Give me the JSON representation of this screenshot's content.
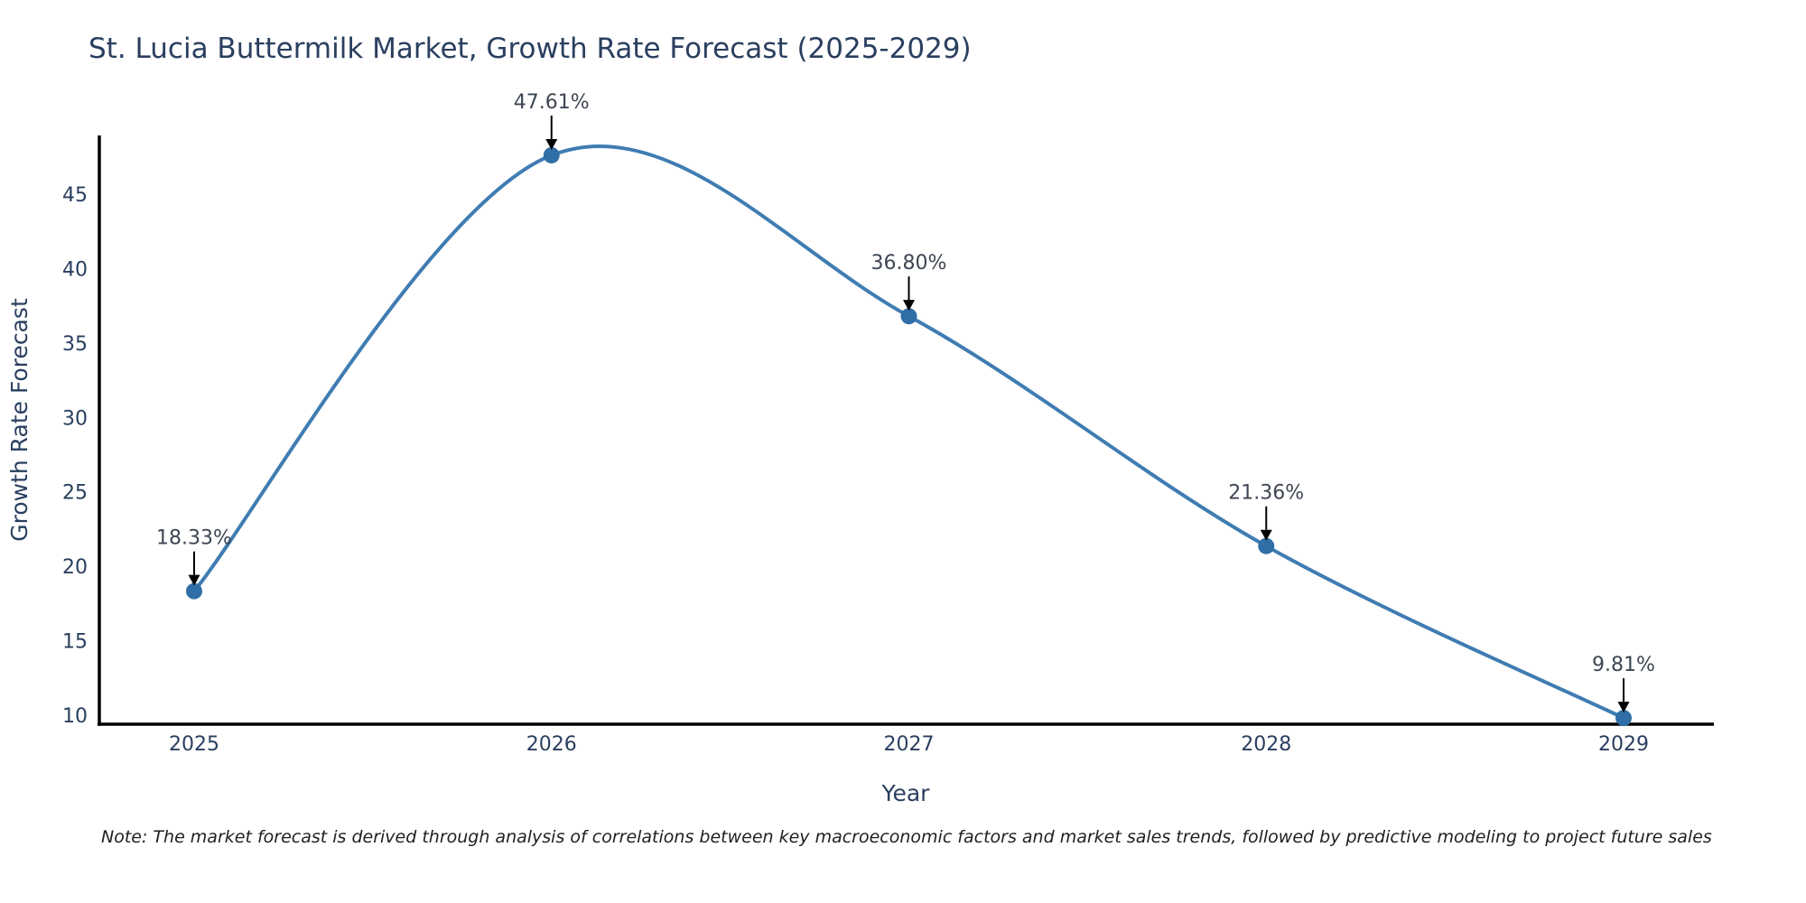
{
  "chart_data": {
    "type": "line",
    "title": "St. Lucia Buttermilk Market, Growth Rate Forecast (2025-2029)",
    "xlabel": "Year",
    "ylabel": "Growth Rate Forecast",
    "x": [
      2025,
      2026,
      2027,
      2028,
      2029
    ],
    "series": [
      {
        "name": "Growth Rate Forecast",
        "values": [
          18.33,
          47.61,
          36.8,
          21.36,
          9.81
        ]
      }
    ],
    "point_labels": [
      "18.33%",
      "47.61%",
      "36.80%",
      "21.36%",
      "9.81%"
    ],
    "xticks": [
      "2025",
      "2026",
      "2027",
      "2028",
      "2029"
    ],
    "yticks": [
      10,
      15,
      20,
      25,
      30,
      35,
      40,
      45
    ],
    "xlim": [
      2024.73,
      2029.25
    ],
    "ylim": [
      9.5,
      49.6
    ],
    "grid": false,
    "legend_position": "none",
    "line_shape": "spline",
    "marker": "circle",
    "colors": {
      "line": "#3f7cb2",
      "marker": "#2f6ea6",
      "axis": "#000000",
      "labels": "#2a3f5f",
      "annotation_text": "#3e4653",
      "arrow": "#000000"
    }
  },
  "footnote": {
    "text": "Note: The market forecast is derived through analysis of correlations between key macroeconomic factors and market sales trends, followed by predictive modeling to project future sales"
  }
}
